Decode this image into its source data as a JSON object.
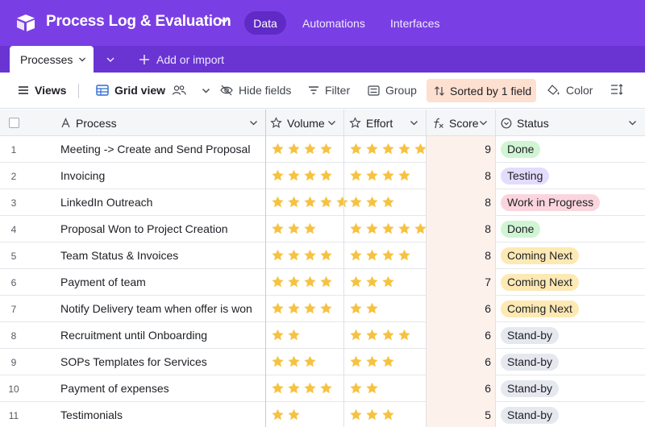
{
  "app": {
    "title": "Process Log & Evaluation"
  },
  "nav": {
    "data": "Data",
    "automations": "Automations",
    "interfaces": "Interfaces"
  },
  "tabs": {
    "active": "Processes",
    "add_import": "Add or import"
  },
  "toolbar": {
    "views": "Views",
    "grid_view": "Grid view",
    "hide_fields": "Hide fields",
    "filter": "Filter",
    "group": "Group",
    "sorted": "Sorted by 1 field",
    "color": "Color"
  },
  "columns": {
    "process": "Process",
    "volume": "Volume",
    "effort": "Effort",
    "score": "Score",
    "status": "Status"
  },
  "colors": {
    "star": "#f6c242",
    "done": "#d0f5d3",
    "testing": "#e4dcfd",
    "wip": "#fbd5dd",
    "coming": "#fde9b3",
    "standby": "#e5e8ee"
  },
  "rows": [
    {
      "num": "1",
      "process": "Meeting -> Create and Send Proposal",
      "volume": 4,
      "effort": 5,
      "score": "9",
      "status": "Done",
      "status_color": "#d0f5d3"
    },
    {
      "num": "2",
      "process": "Invoicing",
      "volume": 4,
      "effort": 4,
      "score": "8",
      "status": "Testing",
      "status_color": "#e4dcfd"
    },
    {
      "num": "3",
      "process": "LinkedIn Outreach",
      "volume": 5,
      "effort": 3,
      "score": "8",
      "status": "Work in Progress",
      "status_color": "#fbd5dd"
    },
    {
      "num": "4",
      "process": "Proposal Won to Project Creation",
      "volume": 3,
      "effort": 5,
      "score": "8",
      "status": "Done",
      "status_color": "#d0f5d3"
    },
    {
      "num": "5",
      "process": "Team Status & Invoices",
      "volume": 4,
      "effort": 4,
      "score": "8",
      "status": "Coming Next",
      "status_color": "#fde9b3"
    },
    {
      "num": "6",
      "process": "Payment of team",
      "volume": 4,
      "effort": 3,
      "score": "7",
      "status": "Coming Next",
      "status_color": "#fde9b3"
    },
    {
      "num": "7",
      "process": "Notify Delivery team when offer is won",
      "volume": 4,
      "effort": 2,
      "score": "6",
      "status": "Coming Next",
      "status_color": "#fde9b3"
    },
    {
      "num": "8",
      "process": "Recruitment until Onboarding",
      "volume": 2,
      "effort": 4,
      "score": "6",
      "status": "Stand-by",
      "status_color": "#e5e8ee"
    },
    {
      "num": "9",
      "process": "SOPs Templates for Services",
      "volume": 3,
      "effort": 3,
      "score": "6",
      "status": "Stand-by",
      "status_color": "#e5e8ee"
    },
    {
      "num": "10",
      "process": "Payment of expenses",
      "volume": 4,
      "effort": 2,
      "score": "6",
      "status": "Stand-by",
      "status_color": "#e5e8ee"
    },
    {
      "num": "11",
      "process": "Testimonials",
      "volume": 2,
      "effort": 3,
      "score": "5",
      "status": "Stand-by",
      "status_color": "#e5e8ee"
    }
  ]
}
